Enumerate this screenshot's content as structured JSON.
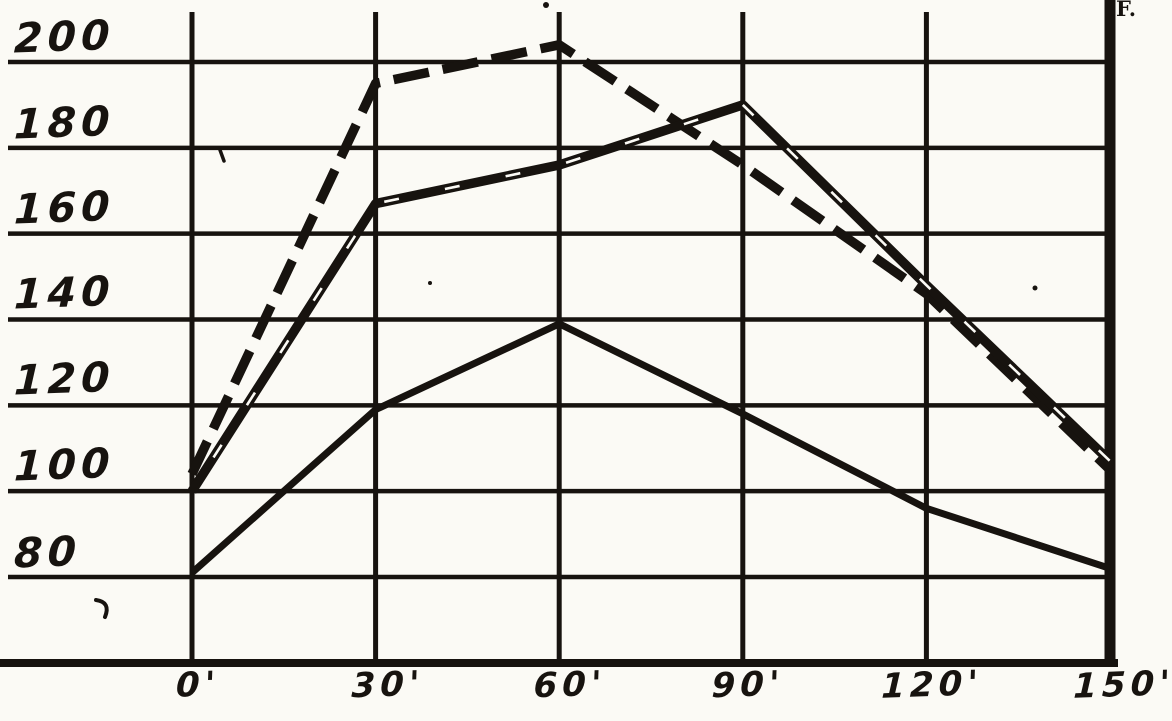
{
  "page": {
    "paper_color": "#fbfaf5",
    "ink_color": "#17130f",
    "top_right_mark": "F."
  },
  "chart_data": {
    "type": "line",
    "title": "",
    "xlabel": "",
    "ylabel": "",
    "x": [
      0,
      30,
      60,
      90,
      120,
      150
    ],
    "x_tick_labels": [
      "0'",
      "30'",
      "60'",
      "90'",
      "120'",
      "150'"
    ],
    "y_ticks": [
      200,
      180,
      160,
      140,
      120,
      100,
      80
    ],
    "y_tick_labels": [
      "200",
      "180",
      "160",
      "140",
      "120",
      "100",
      "80"
    ],
    "xlim": [
      0,
      150
    ],
    "ylim": [
      60,
      210
    ],
    "grid": true,
    "legend_position": "none",
    "series": [
      {
        "name": "heavy-dashed-line",
        "line_style": "dashed",
        "values": [
          104,
          195,
          204,
          176,
          146,
          105
        ]
      },
      {
        "name": "solid-line-with-white-dashes",
        "line_style": "solid-ribbon",
        "values": [
          100,
          167,
          176,
          190,
          148,
          107
        ]
      },
      {
        "name": "plain-solid-line",
        "line_style": "solid",
        "values": [
          81,
          119,
          139,
          118,
          96,
          82
        ]
      }
    ]
  }
}
